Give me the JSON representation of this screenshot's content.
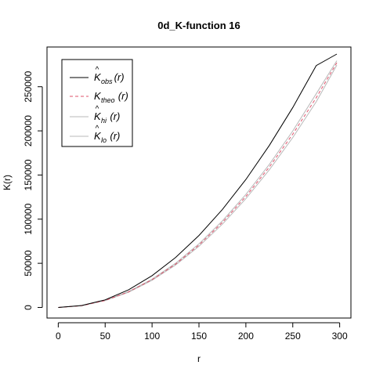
{
  "chart_data": {
    "type": "line",
    "title": "0d_K-function 16",
    "xlabel": "r",
    "ylabel": "K(r)",
    "xlim": [
      -12,
      312
    ],
    "ylim": [
      -12000,
      295000
    ],
    "x_ticks": [
      0,
      50,
      100,
      150,
      200,
      250,
      300
    ],
    "y_ticks": [
      0,
      50000,
      100000,
      150000,
      200000,
      250000
    ],
    "x_tick_labels": [
      "0",
      "50",
      "100",
      "150",
      "200",
      "250",
      "300"
    ],
    "y_tick_labels": [
      "0",
      "50000",
      "100000",
      "150000",
      "200000",
      "250000"
    ],
    "grid": false,
    "legend_position": "top-left",
    "x": [
      0,
      25,
      50,
      75,
      100,
      125,
      150,
      175,
      200,
      225,
      250,
      275,
      297
    ],
    "series": [
      {
        "name": "K̂obs(r)",
        "legend_parts": {
          "base": "K",
          "hat": "^",
          "sub": "obs",
          "arg": "(r)"
        },
        "color": "#000000",
        "dash": "",
        "values": [
          0,
          2200,
          8600,
          20000,
          36000,
          56500,
          81500,
          111000,
          145000,
          183500,
          226500,
          274000,
          287000
        ]
      },
      {
        "name": "Ktheo(r)",
        "legend_parts": {
          "base": "K",
          "hat": "",
          "sub": "theo",
          "arg": "(r)"
        },
        "color": "#df536b",
        "dash": "4,3",
        "values": [
          0,
          1963,
          7854,
          17671,
          31416,
          49087,
          70686,
          96211,
          125664,
          159043,
          196350,
          237583,
          277193
        ]
      },
      {
        "name": "K̂hi(r)",
        "legend_parts": {
          "base": "K",
          "hat": "^",
          "sub": "hi",
          "arg": "(r)"
        },
        "color": "#b8b8b8",
        "dash": "",
        "values": [
          0,
          2000,
          8000,
          18000,
          32000,
          50000,
          72000,
          98000,
          128000,
          162000,
          200000,
          242000,
          279500
        ]
      },
      {
        "name": "K̂lo(r)",
        "legend_parts": {
          "base": "K",
          "hat": "^",
          "sub": "lo",
          "arg": "(r)"
        },
        "color": "#b8b8b8",
        "dash": "",
        "values": [
          0,
          1900,
          7700,
          17300,
          30800,
          48100,
          69300,
          94300,
          123200,
          155900,
          192500,
          233000,
          274500
        ]
      }
    ]
  }
}
